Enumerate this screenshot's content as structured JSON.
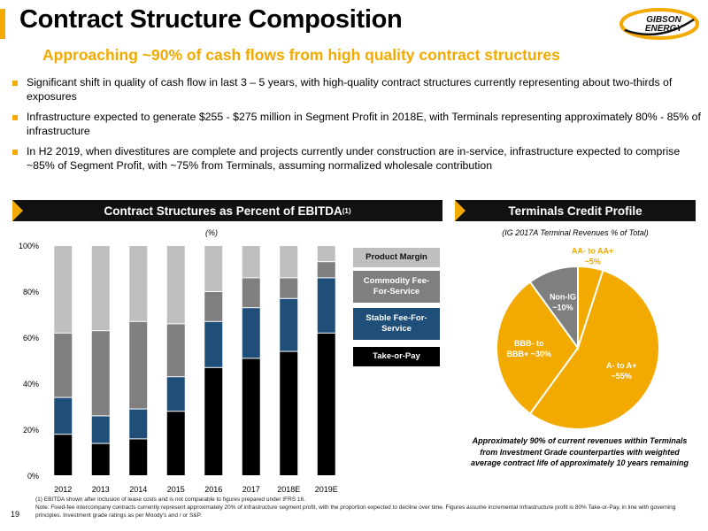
{
  "header": {
    "title": "Contract Structure Composition",
    "subtitle": "Approaching ~90% of cash flows from high quality contract structures",
    "logo_text_1": "GIBSON",
    "logo_text_2": "ENERGY"
  },
  "bullets": [
    "Significant shift in quality of cash flow in last 3 – 5 years, with high-quality contract structures currently representing about two-thirds of exposures",
    "Infrastructure expected to generate $255 - $275 million in Segment Profit in 2018E, with Terminals representing approximately 80% - 85% of infrastructure",
    "In H2 2019, when divestitures are complete and projects currently under construction are in-service, infrastructure expected to comprise ~85% of Segment Profit, with ~75% from Terminals, assuming normalized wholesale contribution"
  ],
  "left_panel": {
    "header": "Contract Structures as Percent of EBITDA",
    "header_sup": "(1)",
    "unit_label": "(%)"
  },
  "right_panel": {
    "header": "Terminals Credit Profile",
    "subtitle": "(IG 2017A Terminal Revenues % of Total)",
    "note": "Approximately 90% of current revenues within Terminals from Investment Grade counterparties with weighted average contract life of approximately 10 years remaining"
  },
  "footnotes": {
    "line1": "(1)  EBITDA shown after inclusion of lease costs and is not comparable to figures prepared under IFRS 16.",
    "line2": "Note: Fixed-fee intercompany contracts currently represent approximately 20% of infrastructure segment profit, with the proportion expected to decline over time.  Figures assume incremental Infrastructure profit is 80% Take-or-Pay, in line with governing principles. Investment grade ratings as per Moody's and / or S&P."
  },
  "page_number": "19",
  "colors": {
    "accent": "#f2a900",
    "take_or_pay": "#000000",
    "stable": "#1f4e79",
    "commodity": "#7f7f7f",
    "product_margin": "#bfbfbf"
  },
  "chart_data": [
    {
      "type": "bar",
      "stacked": true,
      "categories": [
        "2012",
        "2013",
        "2014",
        "2015",
        "2016",
        "2017",
        "2018E",
        "2019E"
      ],
      "series": [
        {
          "name": "Take-or-Pay",
          "values": [
            18,
            14,
            16,
            28,
            47,
            51,
            54,
            62
          ]
        },
        {
          "name": "Stable Fee-For-Service",
          "values": [
            16,
            12,
            13,
            15,
            20,
            22,
            23,
            24
          ]
        },
        {
          "name": "Commodity Fee-For-Service",
          "values": [
            28,
            37,
            38,
            23,
            13,
            13,
            9,
            7
          ]
        },
        {
          "name": "Product Margin",
          "values": [
            38,
            37,
            33,
            34,
            20,
            14,
            14,
            7
          ]
        }
      ],
      "ylim": [
        0,
        100
      ],
      "yticks": [
        "0%",
        "20%",
        "40%",
        "60%",
        "80%",
        "100%"
      ],
      "legend_placement": "right"
    },
    {
      "type": "pie",
      "slices": [
        {
          "label_1": "AA- to AA+",
          "label_2": "~5%",
          "value": 5,
          "color": "#f2a900",
          "label_color": "#f2a900"
        },
        {
          "label_1": "A- to A+",
          "label_2": "~55%",
          "value": 55,
          "color": "#f2a900",
          "label_color": "#ffffff"
        },
        {
          "label_1": "BBB- to",
          "label_2": "BBB+ ~30%",
          "value": 30,
          "color": "#f2a900",
          "label_color": "#ffffff"
        },
        {
          "label_1": "Non-IG",
          "label_2": "~10%",
          "value": 10,
          "color": "#7f7f7f",
          "label_color": "#ffffff"
        }
      ]
    }
  ]
}
